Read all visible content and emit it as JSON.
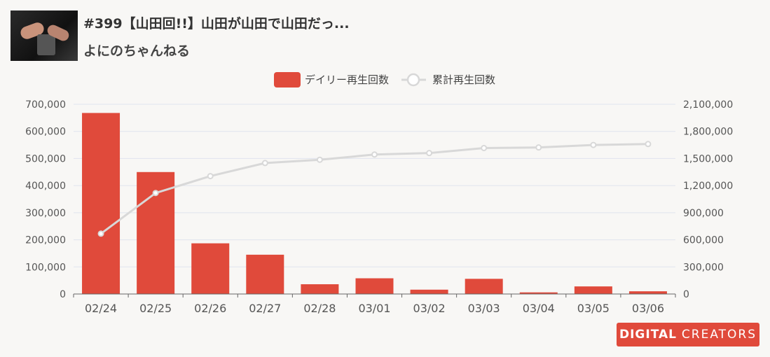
{
  "header": {
    "video_title": "#399【山田回!!】山田が山田で山田だっ...",
    "channel_name": "よにのちゃんねる"
  },
  "logo": {
    "text_bold": "DIGITAL",
    "text_light": "CREATORS",
    "color": "#e04a3b"
  },
  "chart_data": {
    "type": "bar",
    "categories": [
      "02/24",
      "02/25",
      "02/26",
      "02/27",
      "02/28",
      "03/01",
      "03/02",
      "03/03",
      "03/04",
      "03/05",
      "03/06"
    ],
    "series": [
      {
        "name": "デイリー再生回数",
        "type": "bar",
        "axis": "left",
        "color": "#e04a3b",
        "values": [
          668000,
          450000,
          187000,
          145000,
          36000,
          58000,
          16000,
          56000,
          6000,
          28000,
          10000
        ]
      },
      {
        "name": "累計再生回数",
        "type": "line",
        "axis": "right",
        "color": "#d8d8d8",
        "values": [
          668000,
          1118000,
          1305000,
          1450000,
          1486000,
          1544000,
          1560000,
          1616000,
          1622000,
          1650000,
          1660000
        ]
      }
    ],
    "y_left": {
      "min": 0,
      "max": 700000,
      "ticks": [
        "0",
        "100,000",
        "200,000",
        "300,000",
        "400,000",
        "500,000",
        "600,000",
        "700,000"
      ]
    },
    "y_right": {
      "min": 0,
      "max": 2100000,
      "ticks": [
        "0",
        "300,000",
        "600,000",
        "900,000",
        "1,200,000",
        "1,500,000",
        "1,800,000",
        "2,100,000"
      ]
    },
    "grid": true,
    "legend_position": "top-center"
  }
}
